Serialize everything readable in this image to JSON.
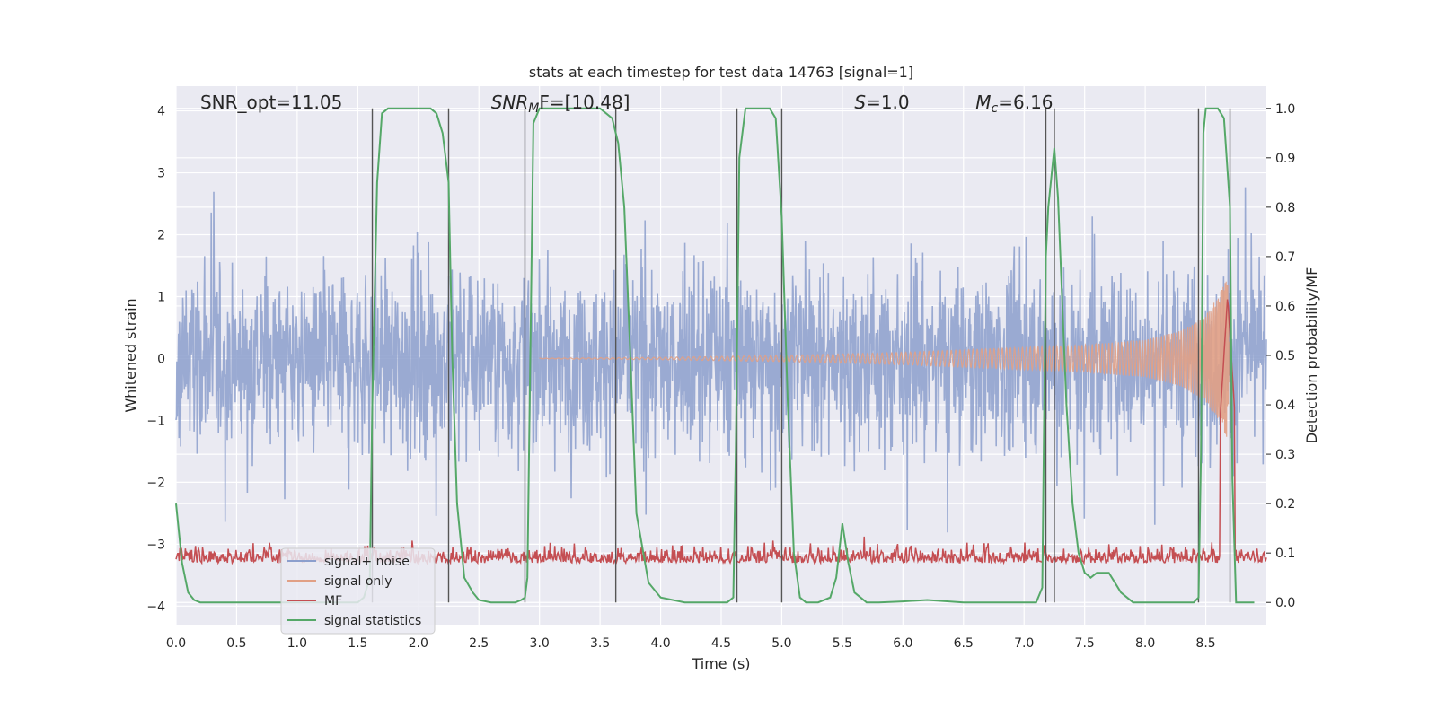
{
  "chart_data": {
    "type": "line",
    "title": "stats at each timestep for test data 14763 [signal=1]",
    "xlabel": "Time (s)",
    "ylabel": "Whitened strain",
    "ylabel_right": "Detection probability/MF",
    "xlim": [
      0,
      9.0
    ],
    "ylim": [
      -4.3,
      4.4
    ],
    "ylim_right": [
      -0.045,
      1.045
    ],
    "x_ticks": [
      "0.0",
      "0.5",
      "1.0",
      "1.5",
      "2.0",
      "2.5",
      "3.0",
      "3.5",
      "4.0",
      "4.5",
      "5.0",
      "5.5",
      "6.0",
      "6.5",
      "7.0",
      "7.5",
      "8.0",
      "8.5"
    ],
    "y_ticks": [
      "4",
      "3",
      "2",
      "1",
      "0",
      "−1",
      "−2",
      "−3",
      "−4"
    ],
    "y_right_ticks": [
      "1.0",
      "0.9",
      "0.8",
      "0.7",
      "0.6",
      "0.5",
      "0.4",
      "0.3",
      "0.2",
      "0.1",
      "0.0"
    ],
    "grid": true,
    "legend_position": "lower-left",
    "annotations": [
      {
        "id": "snr-opt",
        "text": "SNR_opt=11.05",
        "x": 0.2
      },
      {
        "id": "snr-mf",
        "text": "SNR",
        "sub": "M",
        "rest": "F=[10.48]",
        "x": 2.6
      },
      {
        "id": "s-stat",
        "text": "S",
        "rest": "=1.0",
        "x": 5.6
      },
      {
        "id": "mc",
        "text": "M",
        "sub": "c",
        "rest": "=6.16",
        "x": 6.6
      }
    ],
    "series": [
      {
        "name": "signal+ noise",
        "color": "#8c9fcd",
        "style": "noise",
        "amplitude": 2.0,
        "axis": "left"
      },
      {
        "name": "signal only",
        "color": "#e1a085",
        "style": "chirp",
        "axis": "left",
        "envelope": [
          [
            3.0,
            0.005
          ],
          [
            4.0,
            0.02
          ],
          [
            5.0,
            0.05
          ],
          [
            6.0,
            0.1
          ],
          [
            7.0,
            0.18
          ],
          [
            7.5,
            0.22
          ],
          [
            8.0,
            0.3
          ],
          [
            8.3,
            0.45
          ],
          [
            8.5,
            0.7
          ],
          [
            8.6,
            1.0
          ],
          [
            8.68,
            1.3
          ],
          [
            8.7,
            0.0
          ]
        ]
      },
      {
        "name": "MF",
        "color": "#c44e52",
        "style": "mf",
        "baseline": 0.08,
        "peak": [
          8.68,
          0.62
        ],
        "axis": "right"
      },
      {
        "name": "signal statistics",
        "color": "#55a868",
        "axis": "right",
        "x": [
          0.0,
          0.05,
          0.1,
          0.15,
          0.2,
          0.3,
          0.5,
          0.8,
          1.0,
          1.2,
          1.4,
          1.5,
          1.55,
          1.6,
          1.62,
          1.66,
          1.7,
          1.75,
          1.8,
          1.9,
          2.0,
          2.1,
          2.15,
          2.2,
          2.25,
          2.28,
          2.32,
          2.38,
          2.45,
          2.5,
          2.6,
          2.7,
          2.8,
          2.85,
          2.88,
          2.9,
          2.95,
          3.0,
          3.1,
          3.2,
          3.3,
          3.4,
          3.5,
          3.6,
          3.65,
          3.7,
          3.75,
          3.8,
          3.9,
          4.0,
          4.2,
          4.4,
          4.5,
          4.55,
          4.6,
          4.62,
          4.65,
          4.7,
          4.8,
          4.9,
          4.95,
          5.0,
          5.05,
          5.1,
          5.15,
          5.2,
          5.3,
          5.4,
          5.45,
          5.5,
          5.55,
          5.6,
          5.7,
          5.8,
          6.0,
          6.2,
          6.5,
          6.8,
          7.0,
          7.1,
          7.15,
          7.18,
          7.2,
          7.25,
          7.28,
          7.3,
          7.35,
          7.4,
          7.45,
          7.5,
          7.55,
          7.6,
          7.7,
          7.75,
          7.8,
          7.9,
          8.0,
          8.2,
          8.4,
          8.44,
          8.46,
          8.48,
          8.5,
          8.55,
          8.6,
          8.65,
          8.7,
          8.72,
          8.75,
          8.8,
          8.9
        ],
        "y": [
          0.2,
          0.08,
          0.02,
          0.005,
          0.0,
          0.0,
          0.0,
          0.0,
          0.0,
          0.0,
          0.0,
          0.0,
          0.01,
          0.05,
          0.4,
          0.85,
          0.99,
          1.0,
          1.0,
          1.0,
          1.0,
          1.0,
          0.99,
          0.95,
          0.85,
          0.5,
          0.2,
          0.05,
          0.02,
          0.005,
          0.0,
          0.0,
          0.0,
          0.005,
          0.01,
          0.05,
          0.97,
          1.0,
          1.0,
          1.0,
          1.0,
          1.0,
          1.0,
          0.98,
          0.93,
          0.8,
          0.5,
          0.18,
          0.04,
          0.01,
          0.0,
          0.0,
          0.0,
          0.0,
          0.01,
          0.3,
          0.9,
          1.0,
          1.0,
          1.0,
          0.98,
          0.78,
          0.4,
          0.1,
          0.01,
          0.0,
          0.0,
          0.01,
          0.05,
          0.16,
          0.08,
          0.02,
          0.0,
          0.0,
          0.002,
          0.005,
          0.0,
          0.0,
          0.0,
          0.0,
          0.03,
          0.7,
          0.8,
          0.92,
          0.82,
          0.7,
          0.4,
          0.2,
          0.1,
          0.06,
          0.05,
          0.06,
          0.06,
          0.04,
          0.02,
          0.0,
          0.0,
          0.0,
          0.0,
          0.01,
          0.3,
          0.95,
          1.0,
          1.0,
          1.0,
          0.98,
          0.8,
          0.25,
          0.0,
          0.0,
          0.0
        ]
      }
    ],
    "vertical_lines": [
      1.62,
      2.25,
      2.88,
      3.63,
      4.63,
      5.0,
      7.18,
      7.25,
      8.44,
      8.7
    ]
  }
}
